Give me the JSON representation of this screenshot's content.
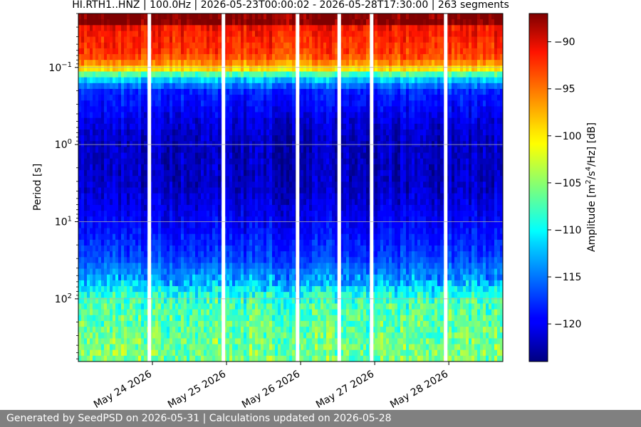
{
  "chart_data": {
    "type": "heatmap",
    "title": "HI.RTH1..HNZ | 100.0Hz | 2026-05-23T00:00:02 - 2026-05-28T17:30:00 | 263 segments",
    "ylabel": "Period [s]",
    "colorbar_label_prefix": "Amplitude [m",
    "colorbar_label_mid": "/s",
    "colorbar_label_mid2": "/Hz] [dB]",
    "colorbar_sup1": "2",
    "colorbar_sup2": "4",
    "y_scale": "log",
    "y_range": [
      0.02,
      650
    ],
    "y_ticks": [
      {
        "value": 0.1,
        "base": "10",
        "exp": "−1"
      },
      {
        "value": 1,
        "base": "10",
        "exp": "0"
      },
      {
        "value": 10,
        "base": "10",
        "exp": "1"
      },
      {
        "value": 100,
        "base": "10",
        "exp": "2"
      }
    ],
    "x_range": [
      "2026-05-23T00:00:02",
      "2026-05-28T17:30:00"
    ],
    "x_ticks": [
      {
        "date": "2026-05-24",
        "label": "May 24 2026"
      },
      {
        "date": "2026-05-25",
        "label": "May 25 2026"
      },
      {
        "date": "2026-05-26",
        "label": "May 26 2026"
      },
      {
        "date": "2026-05-27",
        "label": "May 27 2026"
      },
      {
        "date": "2026-05-28",
        "label": "May 28 2026"
      }
    ],
    "gaps": [
      "2026-05-23T23:00:00",
      "2026-05-24T23:00:00",
      "2026-05-25T23:00:00",
      "2026-05-26T12:30:00",
      "2026-05-26T23:00:00",
      "2026-05-27T23:00:00"
    ],
    "grid": true,
    "colorbar": {
      "range_db": [
        -124,
        -87
      ],
      "ticks": [
        {
          "value": -90,
          "label": "−90"
        },
        {
          "value": -95,
          "label": "−95"
        },
        {
          "value": -100,
          "label": "−100"
        },
        {
          "value": -105,
          "label": "−105"
        },
        {
          "value": -110,
          "label": "−110"
        },
        {
          "value": -115,
          "label": "−115"
        },
        {
          "value": -120,
          "label": "−120"
        }
      ],
      "colormap": "jet"
    },
    "amplitude_profile": [
      {
        "period": 0.02,
        "db": -87
      },
      {
        "period": 0.028,
        "db": -87
      },
      {
        "period": 0.03,
        "db": -91
      },
      {
        "period": 0.07,
        "db": -93
      },
      {
        "period": 0.1,
        "db": -98
      },
      {
        "period": 0.13,
        "db": -110
      },
      {
        "period": 0.2,
        "db": -118
      },
      {
        "period": 0.5,
        "db": -121
      },
      {
        "period": 1,
        "db": -122
      },
      {
        "period": 3,
        "db": -122
      },
      {
        "period": 10,
        "db": -120
      },
      {
        "period": 30,
        "db": -117
      },
      {
        "period": 60,
        "db": -113
      },
      {
        "period": 100,
        "db": -108
      },
      {
        "period": 400,
        "db": -106
      },
      {
        "period": 650,
        "db": -106
      }
    ]
  },
  "footer": {
    "text": "Generated by SeedPSD on 2026-05-31 | Calculations updated on 2026-05-28"
  }
}
